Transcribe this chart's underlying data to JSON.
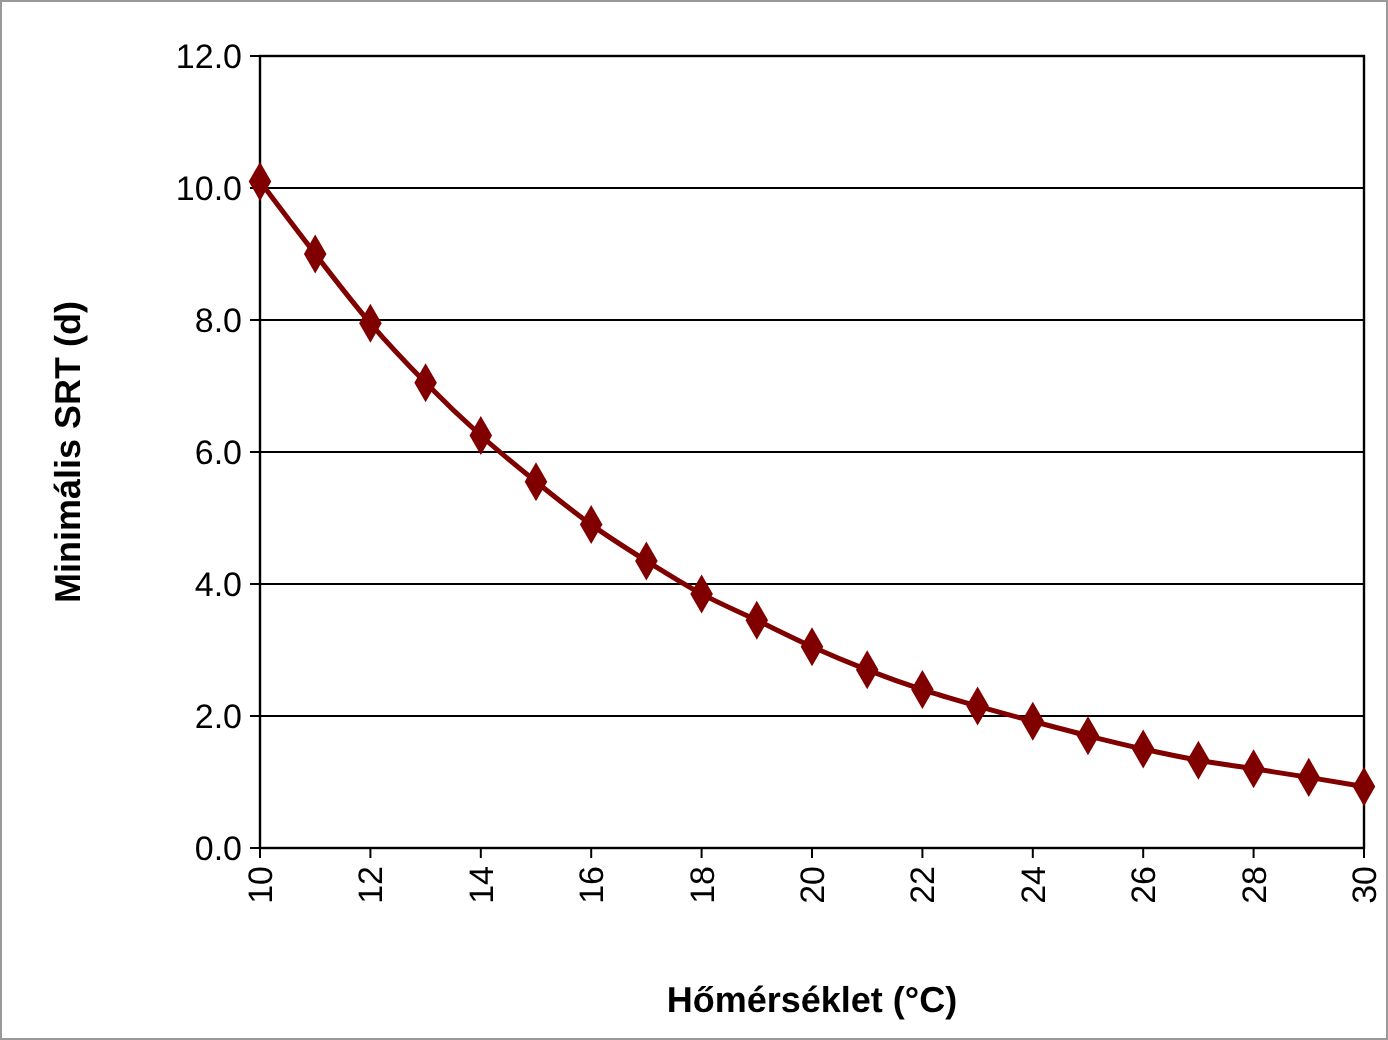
{
  "chart_data": {
    "type": "line",
    "xlabel": "Hőmérséklet (°C)",
    "ylabel": "Minimális SRT (d)",
    "x": [
      10,
      11,
      12,
      13,
      14,
      15,
      16,
      17,
      18,
      19,
      20,
      21,
      22,
      23,
      24,
      25,
      26,
      27,
      28,
      29,
      30
    ],
    "series": [
      {
        "color": "#800000",
        "values": [
          10.1,
          9.0,
          7.95,
          7.05,
          6.25,
          5.55,
          4.9,
          4.35,
          3.85,
          3.45,
          3.05,
          2.7,
          2.4,
          2.15,
          1.92,
          1.7,
          1.5,
          1.33,
          1.2,
          1.07,
          0.93
        ]
      }
    ],
    "xlim": [
      10,
      30
    ],
    "xticks": [
      10,
      12,
      14,
      16,
      18,
      20,
      22,
      24,
      26,
      28,
      30
    ],
    "ylim": [
      0,
      12
    ],
    "yticks": [
      {
        "value": 0,
        "label": "0.0"
      },
      {
        "value": 2,
        "label": "2.0"
      },
      {
        "value": 4,
        "label": "4.0"
      },
      {
        "value": 6,
        "label": "6.0"
      },
      {
        "value": 8,
        "label": "8.0"
      },
      {
        "value": 10,
        "label": "10.0"
      },
      {
        "value": 12,
        "label": "12.0"
      }
    ],
    "grid": "y",
    "marker": "diamond",
    "line_style": "solid"
  }
}
